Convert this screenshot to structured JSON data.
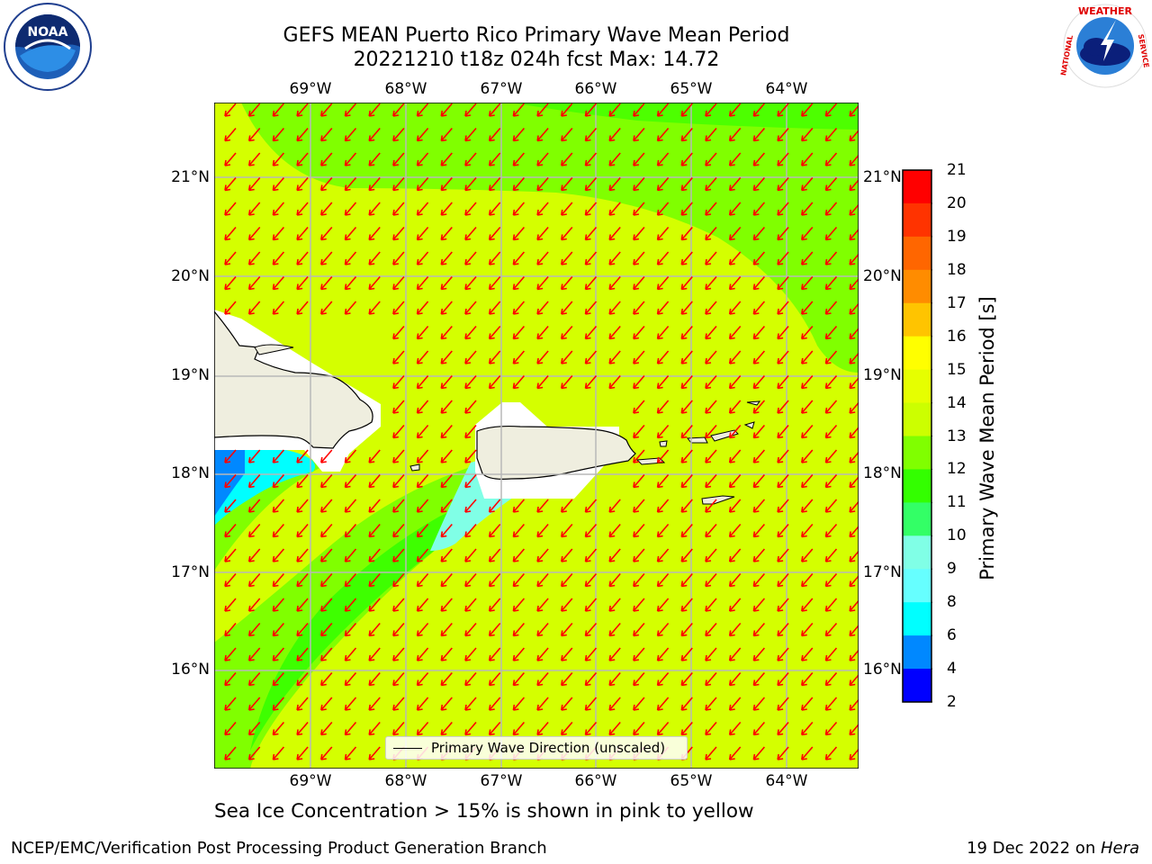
{
  "title_line1": "GEFS MEAN Puerto Rico Primary Wave Mean Period",
  "title_line2": "20221210 t18z 024h fcst   Max: 14.72",
  "lon_labels": [
    "69°W",
    "68°W",
    "67°W",
    "66°W",
    "65°W",
    "64°W"
  ],
  "lat_labels": [
    "21°N",
    "20°N",
    "19°N",
    "18°N",
    "17°N",
    "16°N"
  ],
  "colorbar": {
    "title": "Primary Wave Mean Period [s]",
    "labels": [
      "21",
      "20",
      "19",
      "18",
      "17",
      "16",
      "15",
      "14",
      "13",
      "12",
      "11",
      "10",
      "9",
      "8",
      "6",
      "4",
      "2"
    ],
    "colors": [
      "#ff0000",
      "#ff3300",
      "#ff6600",
      "#ff8c00",
      "#ffc400",
      "#ffff00",
      "#e6ff00",
      "#ccff00",
      "#80ff00",
      "#33ff00",
      "#33ff66",
      "#80ffe6",
      "#66ffff",
      "#00ffff",
      "#0088ff",
      "#0000ff"
    ]
  },
  "legend_text": "Primary Wave Direction (unscaled)",
  "caption": "Sea Ice Concentration > 15% is shown in pink to yellow",
  "footer_left": "NCEP/EMC/Verification Post Processing Product Generation Branch",
  "footer_right_date": "19 Dec 2022 on ",
  "footer_right_machine": "Hera",
  "logos": {
    "left": "NOAA",
    "right_top": "WEATHER",
    "right_side": "NATIONAL",
    "right_end": "SERVICE"
  }
}
